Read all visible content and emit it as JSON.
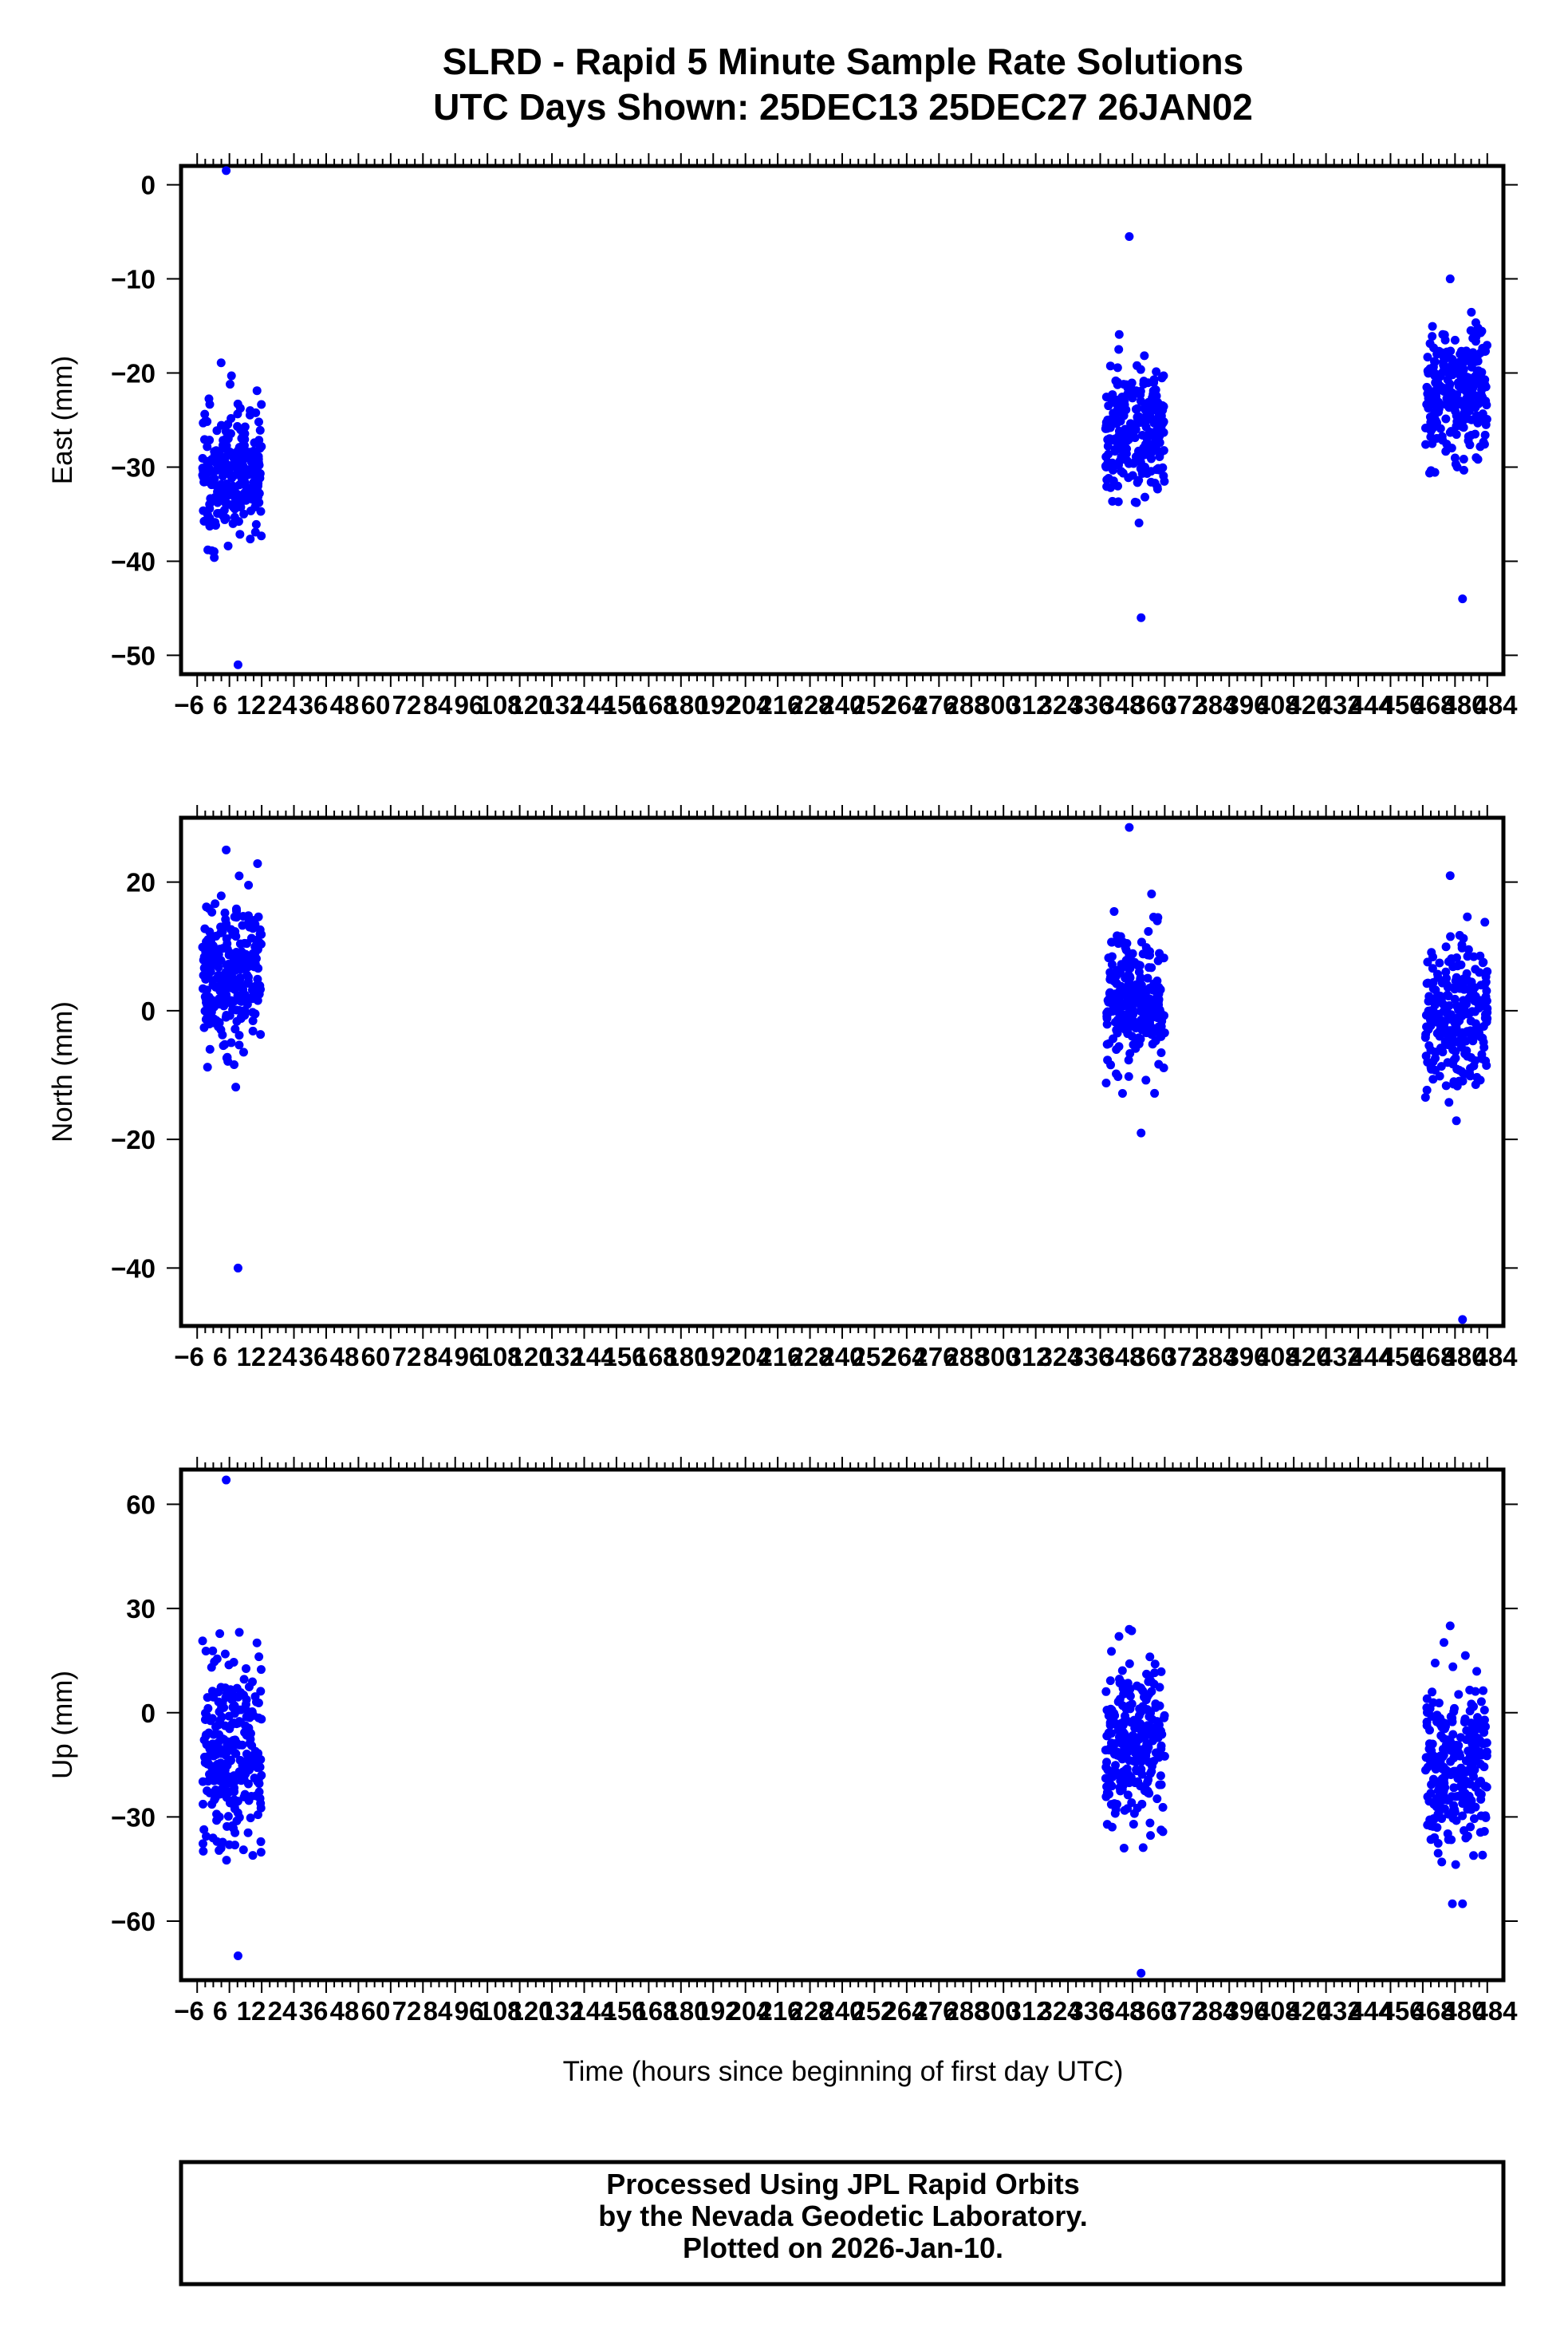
{
  "colors": {
    "points": "#0000ff",
    "axes": "#000000",
    "background": "#ffffff"
  },
  "chart_data": {
    "type": "scatter",
    "title": "SLRD - Rapid 5 Minute Sample Rate Solutions",
    "subtitle": "UTC Days Shown:  25DEC13 25DEC27 26JAN02",
    "xlabel": "Time (hours since beginning of first day UTC)",
    "xlim": [
      -6,
      486
    ],
    "x_tick_labels": [
      "−6",
      "6",
      "12",
      "24",
      "36",
      "48",
      "60",
      "72",
      "84",
      "96",
      "108",
      "120",
      "132",
      "144",
      "156",
      "168",
      "180",
      "192",
      "204",
      "216",
      "228",
      "240",
      "252",
      "264",
      "276",
      "288",
      "300",
      "312",
      "324",
      "336",
      "348",
      "360",
      "372",
      "384",
      "396",
      "408",
      "420",
      "432",
      "444",
      "456",
      "468",
      "480",
      "484"
    ],
    "grid": false,
    "legend": "none",
    "panels": [
      {
        "ylabel": "East (mm)",
        "ylim": [
          -52,
          2
        ],
        "y_ticks": [
          0,
          -10,
          -20,
          -30,
          -40,
          -50
        ],
        "y_tick_labels": [
          "0",
          "−10",
          "−20",
          "−30",
          "−40",
          "−50"
        ],
        "clusters": [
          {
            "x_range": [
              2,
              24
            ],
            "y_center": -30.5,
            "y_spread": 3.5,
            "y_min": -51,
            "y_max": 1.5
          },
          {
            "x_range": [
              338,
              360
            ],
            "y_center": -26,
            "y_spread": 3.2,
            "y_min": -46,
            "y_max": -5.5
          },
          {
            "x_range": [
              457,
              480
            ],
            "y_center": -22,
            "y_spread": 3.5,
            "y_min": -44,
            "y_max": -10
          }
        ]
      },
      {
        "ylabel": "North (mm)",
        "ylim": [
          -49,
          30
        ],
        "y_ticks": [
          20,
          0,
          -20,
          -40
        ],
        "y_tick_labels": [
          "20",
          "0",
          "−20",
          "−40"
        ],
        "clusters": [
          {
            "x_range": [
              2,
              24
            ],
            "y_center": 5,
            "y_spread": 5.5,
            "y_min": -40,
            "y_max": 25
          },
          {
            "x_range": [
              338,
              360
            ],
            "y_center": 1,
            "y_spread": 5,
            "y_min": -19,
            "y_max": 28.5
          },
          {
            "x_range": [
              457,
              480
            ],
            "y_center": -1,
            "y_spread": 5.5,
            "y_min": -48,
            "y_max": 21
          }
        ]
      },
      {
        "ylabel": "Up (mm)",
        "ylim": [
          -77,
          70
        ],
        "y_ticks": [
          60,
          30,
          0,
          -30,
          -60
        ],
        "y_tick_labels": [
          "60",
          "30",
          "0",
          "−30",
          "−60"
        ],
        "clusters": [
          {
            "x_range": [
              2,
              24
            ],
            "y_center": -10,
            "y_spread": 14,
            "y_min": -70,
            "y_max": 67
          },
          {
            "x_range": [
              338,
              360
            ],
            "y_center": -10,
            "y_spread": 12,
            "y_min": -75,
            "y_max": 24
          },
          {
            "x_range": [
              457,
              480
            ],
            "y_center": -15,
            "y_spread": 12,
            "y_min": -55,
            "y_max": 25
          }
        ]
      }
    ]
  },
  "footer": {
    "line1": "Processed Using JPL Rapid Orbits",
    "line2": "by the Nevada Geodetic Laboratory.",
    "line3": "Plotted on 2026-Jan-10."
  }
}
